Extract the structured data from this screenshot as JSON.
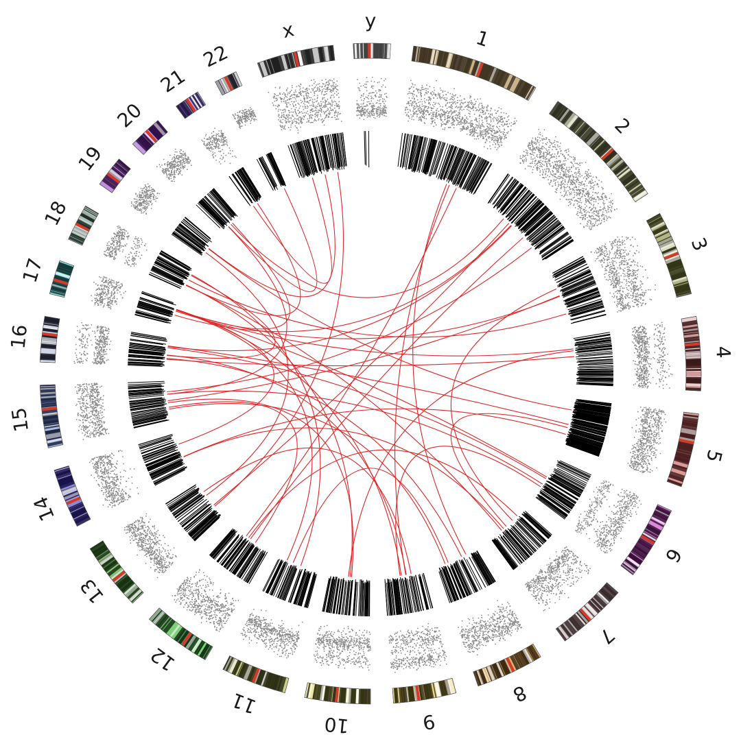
{
  "figure": {
    "chromosomes": [
      {
        "label": "1",
        "color": "#c9b48a",
        "accent": "#3f3422"
      },
      {
        "label": "2",
        "color": "#c8c8a2",
        "accent": "#2f3020"
      },
      {
        "label": "3",
        "color": "#b2b684",
        "accent": "#333516"
      },
      {
        "label": "4",
        "color": "#cf9a9a",
        "accent": "#3a1a1a"
      },
      {
        "label": "5",
        "color": "#d99a98",
        "accent": "#4a1e1e"
      },
      {
        "label": "6",
        "color": "#d98bd8",
        "accent": "#3a0f39"
      },
      {
        "label": "7",
        "color": "#d8cacb",
        "accent": "#3a2a2c"
      },
      {
        "label": "8",
        "color": "#d7b06e",
        "accent": "#3e2a10"
      },
      {
        "label": "9",
        "color": "#e6d58e",
        "accent": "#3a3312"
      },
      {
        "label": "10",
        "color": "#ece7a0",
        "accent": "#353216"
      },
      {
        "label": "11",
        "color": "#cfd08c",
        "accent": "#2d2f14"
      },
      {
        "label": "12",
        "color": "#80d07a",
        "accent": "#123612"
      },
      {
        "label": "13",
        "color": "#8fbe7c",
        "accent": "#16320f"
      },
      {
        "label": "14",
        "color": "#8d87d0",
        "accent": "#15124a"
      },
      {
        "label": "15",
        "color": "#a6b7e1",
        "accent": "#1c2442"
      },
      {
        "label": "16",
        "color": "#cfd7e6",
        "accent": "#1a1e2a"
      },
      {
        "label": "17",
        "color": "#8fdede",
        "accent": "#133a3a"
      },
      {
        "label": "18",
        "color": "#a6c0b4",
        "accent": "#1c2c25"
      },
      {
        "label": "19",
        "color": "#c18fe0",
        "accent": "#321044"
      },
      {
        "label": "20",
        "color": "#c39be0",
        "accent": "#301046"
      },
      {
        "label": "21",
        "color": "#c0b2e8",
        "accent": "#241848"
      },
      {
        "label": "22",
        "color": "#a0a0a8",
        "accent": "#202028"
      },
      {
        "label": "x",
        "color": "#c6c6c6",
        "accent": "#202020"
      },
      {
        "label": "y",
        "color": "#dcdcdc",
        "accent": "#404040"
      }
    ],
    "colors": {
      "scatter": "#8a8a8a",
      "link": "#e02525",
      "bars": "#000000",
      "centromere": "#d23a2a"
    }
  }
}
